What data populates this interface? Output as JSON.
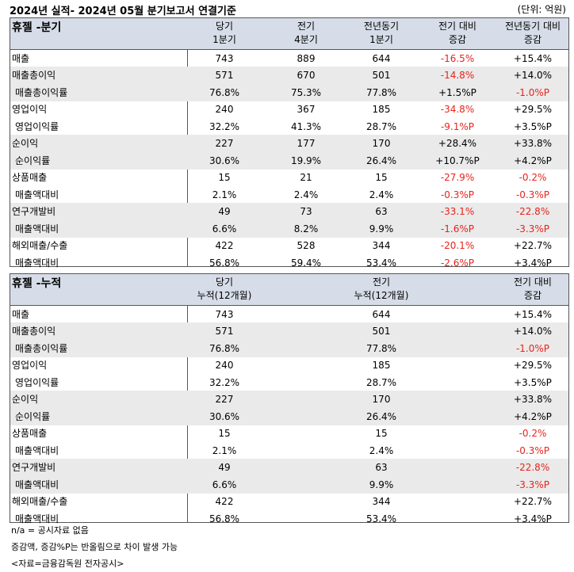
{
  "title": "2024년 실적- 2024년 05월 분기보고서 연결기준",
  "unit": "(단위: 억원)",
  "quarter": {
    "heading": "휴젤 -분기",
    "columns": [
      {
        "l1": "당기",
        "l2": "1분기"
      },
      {
        "l1": "전기",
        "l2": "4분기"
      },
      {
        "l1": "전년동기",
        "l2": "1분기"
      },
      {
        "l1": "전기 대비",
        "l2": "증감"
      },
      {
        "l1": "전년동기 대비",
        "l2": "증감"
      }
    ],
    "rows": [
      {
        "label": "매출",
        "sub": false,
        "values": [
          "743",
          "889",
          "644",
          "-16.5%",
          "+15.4%"
        ]
      },
      {
        "label": "매출총이익",
        "sub": false,
        "values": [
          "571",
          "670",
          "501",
          "-14.8%",
          "+14.0%"
        ]
      },
      {
        "label": "매출총이익률",
        "sub": true,
        "values": [
          "76.8%",
          "75.3%",
          "77.8%",
          "+1.5%P",
          "-1.0%P"
        ]
      },
      {
        "label": "영업이익",
        "sub": false,
        "values": [
          "240",
          "367",
          "185",
          "-34.8%",
          "+29.5%"
        ]
      },
      {
        "label": "영업이익률",
        "sub": true,
        "values": [
          "32.2%",
          "41.3%",
          "28.7%",
          "-9.1%P",
          "+3.5%P"
        ]
      },
      {
        "label": "순이익",
        "sub": false,
        "values": [
          "227",
          "177",
          "170",
          "+28.4%",
          "+33.8%"
        ]
      },
      {
        "label": "순이익률",
        "sub": true,
        "values": [
          "30.6%",
          "19.9%",
          "26.4%",
          "+10.7%P",
          "+4.2%P"
        ]
      },
      {
        "label": "상품매출",
        "sub": false,
        "values": [
          "15",
          "21",
          "15",
          "-27.9%",
          "-0.2%"
        ]
      },
      {
        "label": "매출액대비",
        "sub": true,
        "values": [
          "2.1%",
          "2.4%",
          "2.4%",
          "-0.3%P",
          "-0.3%P"
        ]
      },
      {
        "label": "연구개발비",
        "sub": false,
        "values": [
          "49",
          "73",
          "63",
          "-33.1%",
          "-22.8%"
        ]
      },
      {
        "label": "매출액대비",
        "sub": true,
        "values": [
          "6.6%",
          "8.2%",
          "9.9%",
          "-1.6%P",
          "-3.3%P"
        ]
      },
      {
        "label": "해외매출/수출",
        "sub": false,
        "values": [
          "422",
          "528",
          "344",
          "-20.1%",
          "+22.7%"
        ]
      },
      {
        "label": "매출액대비",
        "sub": true,
        "values": [
          "56.8%",
          "59.4%",
          "53.4%",
          "-2.6%P",
          "+3.4%P"
        ]
      }
    ]
  },
  "cumulative": {
    "heading": "휴젤 -누적",
    "columns": [
      {
        "l1": "당기",
        "l2": "누적(12개월)"
      },
      {
        "l1": "전기",
        "l2": "누적(12개월)"
      },
      {
        "l1": "전기 대비",
        "l2": "증감"
      }
    ],
    "rows": [
      {
        "label": "매출",
        "sub": false,
        "values": [
          "743",
          "644",
          "+15.4%"
        ]
      },
      {
        "label": "매출총이익",
        "sub": false,
        "values": [
          "571",
          "501",
          "+14.0%"
        ]
      },
      {
        "label": "매출총이익률",
        "sub": true,
        "values": [
          "76.8%",
          "77.8%",
          "-1.0%P"
        ]
      },
      {
        "label": "영업이익",
        "sub": false,
        "values": [
          "240",
          "185",
          "+29.5%"
        ]
      },
      {
        "label": "영업이익률",
        "sub": true,
        "values": [
          "32.2%",
          "28.7%",
          "+3.5%P"
        ]
      },
      {
        "label": "순이익",
        "sub": false,
        "values": [
          "227",
          "170",
          "+33.8%"
        ]
      },
      {
        "label": "순이익률",
        "sub": true,
        "values": [
          "30.6%",
          "26.4%",
          "+4.2%P"
        ]
      },
      {
        "label": "상품매출",
        "sub": false,
        "values": [
          "15",
          "15",
          "-0.2%"
        ]
      },
      {
        "label": "매출액대비",
        "sub": true,
        "values": [
          "2.1%",
          "2.4%",
          "-0.3%P"
        ]
      },
      {
        "label": "연구개발비",
        "sub": false,
        "values": [
          "49",
          "63",
          "-22.8%"
        ]
      },
      {
        "label": "매출액대비",
        "sub": true,
        "values": [
          "6.6%",
          "9.9%",
          "-3.3%P"
        ]
      },
      {
        "label": "해외매출/수출",
        "sub": false,
        "values": [
          "422",
          "344",
          "+22.7%"
        ]
      },
      {
        "label": "매출액대비",
        "sub": true,
        "values": [
          "56.8%",
          "53.4%",
          "+3.4%P"
        ]
      }
    ]
  },
  "footer": [
    "n/a = 공시자료 없음",
    "증감액, 증감%P는 반올림으로 차이 발생 가능",
    "<자료=금융감독원 전자공시>"
  ],
  "colors": {
    "header_bg": "#d7dde8",
    "negative": "#e8231c",
    "shade": "#eaeaea"
  }
}
